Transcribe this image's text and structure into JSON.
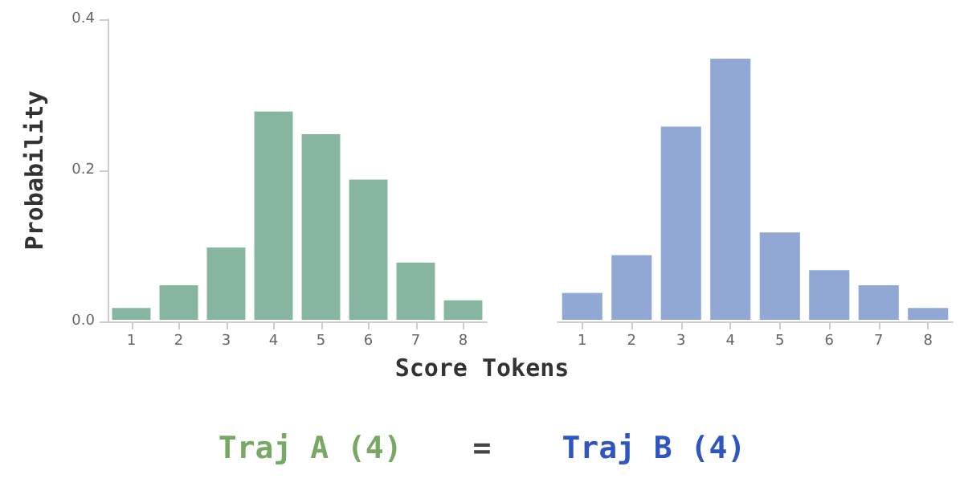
{
  "chart_data": [
    {
      "type": "bar",
      "ylabel": "Probability",
      "xlabel": "Score Tokens",
      "categories": [
        "1",
        "2",
        "3",
        "4",
        "5",
        "6",
        "7",
        "8"
      ],
      "values": [
        0.02,
        0.05,
        0.1,
        0.28,
        0.25,
        0.19,
        0.08,
        0.03
      ],
      "color": "#86b6a0",
      "ylim": [
        0,
        0.4
      ],
      "yticks": [
        {
          "value": 0,
          "label": "0.0"
        },
        {
          "value": 0.2,
          "label": "0.2"
        },
        {
          "value": 0.4,
          "label": "0.4"
        }
      ],
      "grid": false,
      "annotations": [
        "Traj A (4)"
      ]
    },
    {
      "type": "bar",
      "categories": [
        "1",
        "2",
        "3",
        "4",
        "5",
        "6",
        "7",
        "8"
      ],
      "values": [
        0.04,
        0.09,
        0.26,
        0.35,
        0.12,
        0.07,
        0.05,
        0.02
      ],
      "color": "#91a8d4",
      "ylim": [
        0,
        0.4
      ],
      "tick_labels": "x",
      "grid": false,
      "annotations": [
        "=",
        "Traj B (4)"
      ]
    }
  ]
}
